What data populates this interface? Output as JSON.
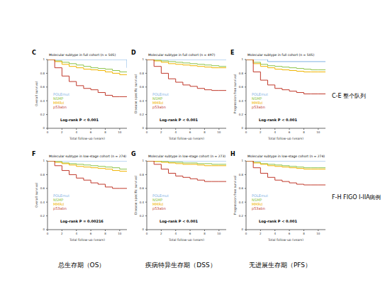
{
  "chart_data": [
    {
      "type": "line",
      "panel": "C",
      "title": "Molecular subtype in full cohort (n = 505)",
      "y_label": "Overall survival",
      "x_label": "Total follow-up (years)",
      "annotation": "Log-rank P < 0.001",
      "xlim": [
        0,
        11
      ],
      "xticks": [
        0,
        2,
        4,
        6,
        8,
        10
      ],
      "ylim": [
        0,
        1
      ],
      "yticks": [
        0,
        0.2,
        0.4,
        0.6,
        0.8,
        1
      ],
      "series": [
        {
          "name": "POLEmut",
          "color": "#7fb2e5",
          "x": [
            0,
            9,
            11
          ],
          "values": [
            1,
            1,
            0.88
          ]
        },
        {
          "name": "NSMP",
          "color": "#8bc34a",
          "x": [
            0,
            1,
            2,
            3,
            4,
            5,
            6,
            7,
            8,
            9,
            10,
            11
          ],
          "values": [
            1,
            0.98,
            0.96,
            0.94,
            0.92,
            0.9,
            0.88,
            0.87,
            0.86,
            0.84,
            0.82,
            0.82
          ]
        },
        {
          "name": "MMRd",
          "color": "#f0b400",
          "x": [
            0,
            1,
            2,
            3,
            4,
            5,
            6,
            7,
            8,
            9,
            10,
            11
          ],
          "values": [
            1,
            0.97,
            0.93,
            0.9,
            0.88,
            0.86,
            0.85,
            0.84,
            0.82,
            0.8,
            0.78,
            0.78
          ]
        },
        {
          "name": "p53abn",
          "color": "#c0392b",
          "x": [
            0,
            1,
            2,
            3,
            4,
            5,
            6,
            7,
            8,
            9,
            10,
            11
          ],
          "values": [
            1,
            0.88,
            0.76,
            0.68,
            0.62,
            0.58,
            0.56,
            0.52,
            0.48,
            0.46,
            0.46,
            0.46
          ]
        }
      ]
    },
    {
      "type": "line",
      "panel": "D",
      "title": "Molecular subtype in full cohort (n = 497)",
      "y_label": "Disease specific survival",
      "x_label": "Total follow-up (years)",
      "annotation": "Log-rank P < 0.001",
      "xlim": [
        0,
        11
      ],
      "xticks": [
        0,
        2,
        4,
        6,
        8,
        10
      ],
      "ylim": [
        0,
        1
      ],
      "yticks": [
        0,
        0.2,
        0.4,
        0.6,
        0.8,
        1
      ],
      "series": [
        {
          "name": "POLEmut",
          "color": "#7fb2e5",
          "x": [
            0,
            11
          ],
          "values": [
            1,
            1
          ]
        },
        {
          "name": "NSMP",
          "color": "#8bc34a",
          "x": [
            0,
            1,
            2,
            3,
            4,
            5,
            6,
            7,
            8,
            9,
            10,
            11
          ],
          "values": [
            1,
            0.99,
            0.98,
            0.97,
            0.96,
            0.95,
            0.94,
            0.93,
            0.92,
            0.91,
            0.9,
            0.9
          ]
        },
        {
          "name": "MMRd",
          "color": "#f0b400",
          "x": [
            0,
            1,
            2,
            3,
            4,
            5,
            6,
            7,
            8,
            9,
            10,
            11
          ],
          "values": [
            1,
            0.98,
            0.96,
            0.94,
            0.93,
            0.92,
            0.91,
            0.9,
            0.89,
            0.88,
            0.88,
            0.88
          ]
        },
        {
          "name": "p53abn",
          "color": "#c0392b",
          "x": [
            0,
            1,
            2,
            3,
            4,
            5,
            6,
            7,
            8,
            9,
            10,
            11
          ],
          "values": [
            1,
            0.9,
            0.8,
            0.72,
            0.67,
            0.63,
            0.61,
            0.58,
            0.56,
            0.55,
            0.55,
            0.55
          ]
        }
      ]
    },
    {
      "type": "line",
      "panel": "E",
      "title": "Molecular subtype in full cohort (n = 505)",
      "y_label": "Progression free survival",
      "x_label": "Total follow-up (years)",
      "annotation": "Log-rank P < 0.001",
      "xlim": [
        0,
        11
      ],
      "xticks": [
        0,
        2,
        4,
        6,
        8,
        10
      ],
      "ylim": [
        0,
        1
      ],
      "yticks": [
        0,
        0.2,
        0.4,
        0.6,
        0.8,
        1
      ],
      "series": [
        {
          "name": "POLEmut",
          "color": "#7fb2e5",
          "x": [
            0,
            3,
            11
          ],
          "values": [
            1,
            0.97,
            0.97
          ]
        },
        {
          "name": "NSMP",
          "color": "#8bc34a",
          "x": [
            0,
            1,
            2,
            3,
            4,
            5,
            6,
            7,
            8,
            9,
            10,
            11
          ],
          "values": [
            1,
            0.96,
            0.93,
            0.91,
            0.9,
            0.89,
            0.88,
            0.87,
            0.86,
            0.85,
            0.85,
            0.85
          ]
        },
        {
          "name": "MMRd",
          "color": "#f0b400",
          "x": [
            0,
            1,
            2,
            3,
            4,
            5,
            6,
            7,
            8,
            9,
            10,
            11
          ],
          "values": [
            1,
            0.94,
            0.9,
            0.88,
            0.86,
            0.85,
            0.84,
            0.83,
            0.82,
            0.82,
            0.82,
            0.82
          ]
        },
        {
          "name": "p53abn",
          "color": "#c0392b",
          "x": [
            0,
            1,
            2,
            3,
            4,
            5,
            6,
            7,
            8,
            9,
            10,
            11
          ],
          "values": [
            1,
            0.82,
            0.7,
            0.63,
            0.58,
            0.56,
            0.54,
            0.52,
            0.5,
            0.5,
            0.5,
            0.5
          ]
        }
      ]
    },
    {
      "type": "line",
      "panel": "F",
      "title": "Molecular subtype in low-stage cohort (n = 274)",
      "y_label": "Overall survival",
      "x_label": "Total follow-up (years)",
      "annotation": "Log-rank P = 0.00216",
      "xlim": [
        0,
        11
      ],
      "xticks": [
        0,
        2,
        4,
        6,
        8,
        10
      ],
      "ylim": [
        0,
        1
      ],
      "yticks": [
        0,
        0.2,
        0.4,
        0.6,
        0.8,
        1
      ],
      "series": [
        {
          "name": "POLEmut",
          "color": "#7fb2e5",
          "x": [
            0,
            11
          ],
          "values": [
            1,
            1
          ]
        },
        {
          "name": "NSMP",
          "color": "#8bc34a",
          "x": [
            0,
            1,
            2,
            3,
            4,
            5,
            6,
            7,
            8,
            9,
            10,
            11
          ],
          "values": [
            1,
            0.99,
            0.97,
            0.96,
            0.95,
            0.94,
            0.93,
            0.92,
            0.91,
            0.9,
            0.88,
            0.88
          ]
        },
        {
          "name": "MMRd",
          "color": "#f0b400",
          "x": [
            0,
            1,
            2,
            3,
            4,
            5,
            6,
            7,
            8,
            9,
            10,
            11
          ],
          "values": [
            1,
            0.98,
            0.96,
            0.94,
            0.92,
            0.91,
            0.9,
            0.89,
            0.88,
            0.86,
            0.85,
            0.85
          ]
        },
        {
          "name": "p53abn",
          "color": "#c0392b",
          "x": [
            0,
            1,
            2,
            3,
            4,
            5,
            6,
            7,
            8,
            9,
            10,
            11
          ],
          "values": [
            1,
            0.93,
            0.86,
            0.8,
            0.75,
            0.72,
            0.68,
            0.66,
            0.62,
            0.6,
            0.6,
            0.6
          ]
        }
      ]
    },
    {
      "type": "line",
      "panel": "G",
      "title": "Molecular subtype in low-stage cohort (n = 273)",
      "y_label": "Disease specific survival",
      "x_label": "Total follow-up (years)",
      "annotation": "Log-rank P < 0.001",
      "xlim": [
        0,
        11
      ],
      "xticks": [
        0,
        2,
        4,
        6,
        8,
        10
      ],
      "ylim": [
        0,
        1
      ],
      "yticks": [
        0,
        0.2,
        0.4,
        0.6,
        0.8,
        1
      ],
      "series": [
        {
          "name": "POLEmut",
          "color": "#7fb2e5",
          "x": [
            0,
            11
          ],
          "values": [
            1,
            1
          ]
        },
        {
          "name": "NSMP",
          "color": "#8bc34a",
          "x": [
            0,
            1,
            2,
            3,
            4,
            5,
            6,
            7,
            8,
            9,
            10,
            11
          ],
          "values": [
            1,
            1,
            0.99,
            0.98,
            0.98,
            0.97,
            0.97,
            0.96,
            0.96,
            0.95,
            0.95,
            0.95
          ]
        },
        {
          "name": "MMRd",
          "color": "#f0b400",
          "x": [
            0,
            1,
            2,
            3,
            4,
            5,
            6,
            7,
            8,
            9,
            10,
            11
          ],
          "values": [
            1,
            0.99,
            0.98,
            0.97,
            0.96,
            0.95,
            0.95,
            0.94,
            0.93,
            0.93,
            0.93,
            0.93
          ]
        },
        {
          "name": "p53abn",
          "color": "#c0392b",
          "x": [
            0,
            1,
            2,
            3,
            4,
            5,
            6,
            7,
            8,
            9,
            10,
            11
          ],
          "values": [
            1,
            0.95,
            0.88,
            0.82,
            0.78,
            0.76,
            0.74,
            0.72,
            0.7,
            0.7,
            0.7,
            0.7
          ]
        }
      ]
    },
    {
      "type": "line",
      "panel": "H",
      "title": "Molecular subtype in low-stage cohort (n = 274)",
      "y_label": "Progression free survival",
      "x_label": "Total follow-up (years)",
      "annotation": "Log-rank P < 0.001",
      "xlim": [
        0,
        11
      ],
      "xticks": [
        0,
        2,
        4,
        6,
        8,
        10
      ],
      "ylim": [
        0,
        1
      ],
      "yticks": [
        0,
        0.2,
        0.4,
        0.6,
        0.8,
        1
      ],
      "series": [
        {
          "name": "POLEmut",
          "color": "#7fb2e5",
          "x": [
            0,
            11
          ],
          "values": [
            1,
            1
          ]
        },
        {
          "name": "NSMP",
          "color": "#8bc34a",
          "x": [
            0,
            1,
            2,
            3,
            4,
            5,
            6,
            7,
            8,
            9,
            10,
            11
          ],
          "values": [
            1,
            0.98,
            0.96,
            0.95,
            0.94,
            0.93,
            0.92,
            0.91,
            0.9,
            0.9,
            0.9,
            0.9
          ]
        },
        {
          "name": "MMRd",
          "color": "#f0b400",
          "x": [
            0,
            1,
            2,
            3,
            4,
            5,
            6,
            7,
            8,
            9,
            10,
            11
          ],
          "values": [
            1,
            0.97,
            0.95,
            0.93,
            0.92,
            0.91,
            0.9,
            0.89,
            0.88,
            0.88,
            0.88,
            0.88
          ]
        },
        {
          "name": "p53abn",
          "color": "#c0392b",
          "x": [
            0,
            1,
            2,
            3,
            4,
            5,
            6,
            7,
            8,
            9,
            10,
            11
          ],
          "values": [
            1,
            0.9,
            0.82,
            0.76,
            0.72,
            0.7,
            0.68,
            0.66,
            0.65,
            0.65,
            0.65,
            0.65
          ]
        }
      ]
    }
  ],
  "row_labels": [
    "C-E 整个队列",
    "F-H FIGO I-IIA病例"
  ],
  "column_labels": [
    "总生存期（OS）",
    "疾病特异生存期（DSS）",
    "无进展生存期（PFS）"
  ]
}
